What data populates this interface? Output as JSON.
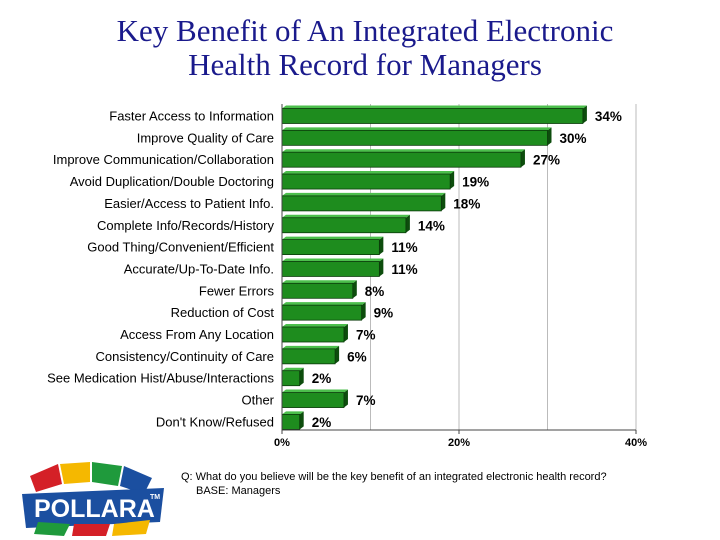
{
  "title_line1": "Key Benefit of An Integrated Electronic",
  "title_line2": "Health Record for Managers",
  "chart_data": {
    "type": "bar",
    "orientation": "horizontal",
    "title": "Key Benefit of An Integrated Electronic Health Record for Managers",
    "categories": [
      "Faster Access to Information",
      "Improve Quality of Care",
      "Improve Communication/Collaboration",
      "Avoid Duplication/Double Doctoring",
      "Easier/Access to Patient Info.",
      "Complete Info/Records/History",
      "Good Thing/Convenient/Efficient",
      "Accurate/Up-To-Date Info.",
      "Fewer Errors",
      "Reduction of Cost",
      "Access From Any Location",
      "Consistency/Continuity of Care",
      "See Medication Hist/Abuse/Interactions",
      "Other",
      "Don't Know/Refused"
    ],
    "values": [
      34,
      30,
      27,
      19,
      18,
      14,
      11,
      11,
      8,
      9,
      7,
      6,
      2,
      7,
      2
    ],
    "value_labels": [
      "34%",
      "30%",
      "27%",
      "19%",
      "18%",
      "14%",
      "11%",
      "11%",
      "8%",
      "9%",
      "7%",
      "6%",
      "2%",
      "7%",
      "2%"
    ],
    "xlim": [
      0,
      40
    ],
    "xticks": [
      "0%",
      "20%",
      "40%"
    ],
    "bar_color": "#1e8c1e"
  },
  "footnote": {
    "question": "Q: What do you believe will be the key benefit of an integrated electronic health record?",
    "base": "BASE: Managers"
  },
  "logo": {
    "text": "POLLARA",
    "trademark": "TM"
  }
}
